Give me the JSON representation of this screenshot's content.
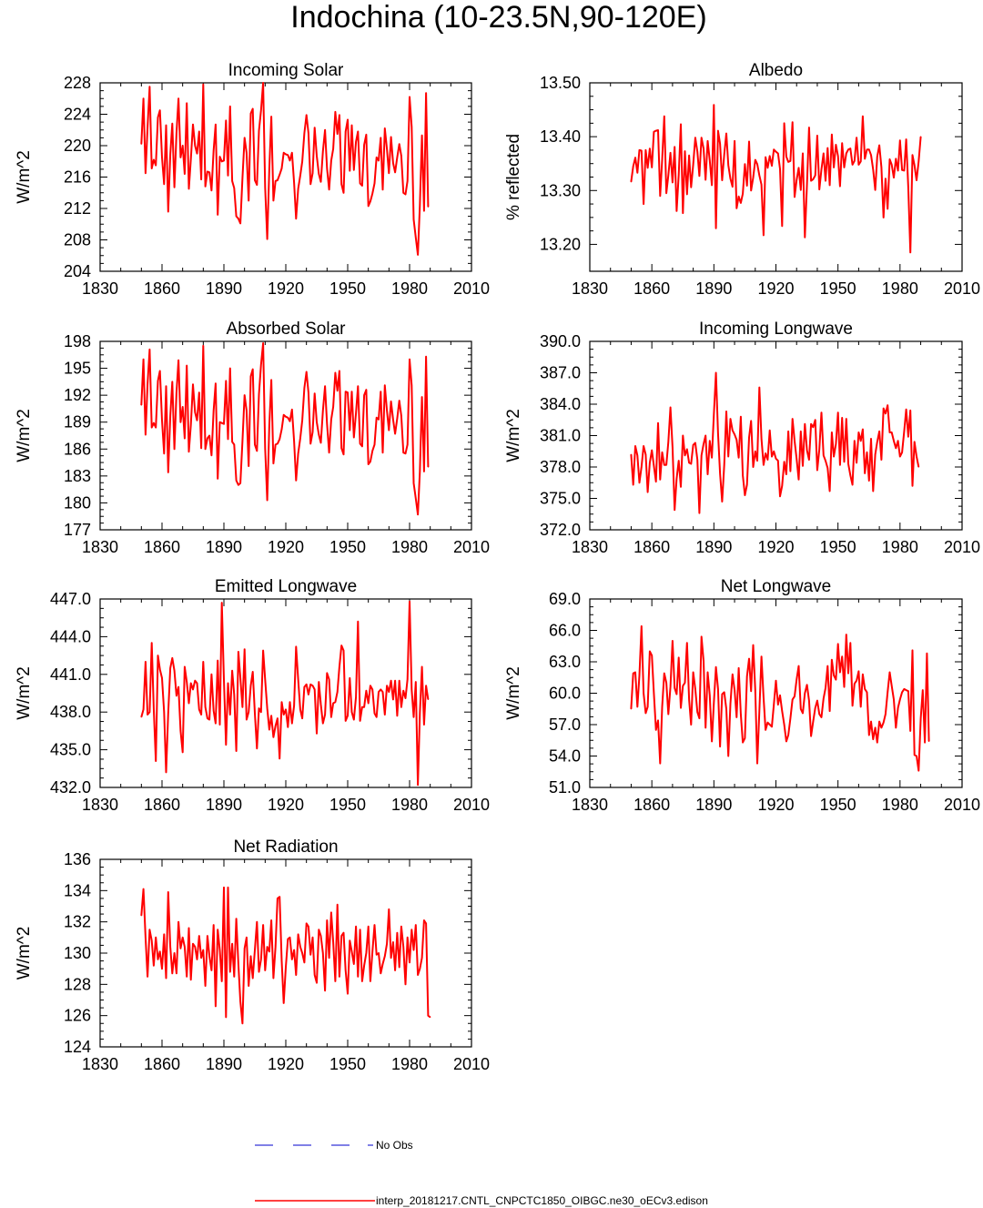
{
  "figure": {
    "title": "Indochina (10-23.5N,90-120E)",
    "series_color": "#ff0000",
    "obs_color": "#0000cc"
  },
  "legend": {
    "obs_label": "No Obs",
    "model_label": "interp_20181217.CNTL_CNPCTC1850_OIBGC.ne30_oECv3.edison"
  },
  "chart_data": [
    {
      "id": "incoming-solar",
      "type": "line",
      "title": "Incoming Solar",
      "xlabel": "",
      "ylabel": "W/m^2",
      "xlim": [
        1830,
        2010
      ],
      "ylim": [
        204,
        228
      ],
      "xticks": [
        1830,
        1860,
        1890,
        1920,
        1950,
        1980,
        2010
      ],
      "yticks": [
        204,
        208,
        212,
        216,
        220,
        224,
        228
      ],
      "ytick_labels": [
        "204",
        "208",
        "212",
        "216",
        "220",
        "224",
        "228"
      ],
      "x_start": 1850,
      "values": [
        220.2,
        226.0,
        216.5,
        222.3,
        227.5,
        217.1,
        218.2,
        217.5,
        223.6,
        224.5,
        218.5,
        215.1,
        222.6,
        211.6,
        218.9,
        222.8,
        214.7,
        221.6,
        226.0,
        218.5,
        220.0,
        216.4,
        225.4,
        214.5,
        218.3,
        222.7,
        220.0,
        219.0,
        221.8,
        215.7,
        227.8,
        214.8,
        216.7,
        216.6,
        214.3,
        219.4,
        222.7,
        211.2,
        218.6,
        218.0,
        218.1,
        223.2,
        216.2,
        225.0,
        215.5,
        214.6,
        211.0,
        210.7,
        210.1,
        215.9,
        221.0,
        219.1,
        213.0,
        224.1,
        224.7,
        215.6,
        215.0,
        221.9,
        224.5,
        228.0,
        214.7,
        208.1,
        217.1,
        223.7,
        213.0,
        215.5,
        215.6,
        216.3,
        217.1,
        219.1,
        218.9,
        218.8,
        218.1,
        219.1,
        215.3,
        210.7,
        214.5,
        216.2,
        218.0,
        221.6,
        223.9,
        221.6,
        215.1,
        216.5,
        222.3,
        218.7,
        216.4,
        215.4,
        219.3,
        222.0,
        217.1,
        214.4,
        218.1,
        219.6,
        224.3,
        221.5,
        223.9,
        215.1,
        214.0,
        221.8,
        223.3,
        216.8,
        222.6,
        216.9,
        220.5,
        221.8,
        215.2,
        214.9,
        220.1,
        221.4,
        212.3,
        212.9,
        213.9,
        215.2,
        218.5,
        218.1,
        221.0,
        214.4,
        222.2,
        219.6,
        216.5,
        221.1,
        217.8,
        216.6,
        218.5,
        220.2,
        218.7,
        214.0,
        213.8,
        215.5,
        226.2,
        222.4,
        210.6,
        208.3,
        206.1,
        212.4,
        221.3,
        211.7,
        226.7,
        212.2
      ]
    },
    {
      "id": "albedo",
      "type": "line",
      "title": "Albedo",
      "xlabel": "",
      "ylabel": "% reflected",
      "xlim": [
        1830,
        2010
      ],
      "ylim": [
        13.15,
        13.5
      ],
      "xticks": [
        1830,
        1860,
        1890,
        1920,
        1950,
        1980,
        2010
      ],
      "yticks": [
        13.2,
        13.3,
        13.4,
        13.5
      ],
      "ytick_labels": [
        "13.20",
        "13.30",
        "13.40",
        "13.50"
      ],
      "x_start": 1850,
      "values": [
        13.316,
        13.345,
        13.361,
        13.333,
        13.375,
        13.374,
        13.275,
        13.375,
        13.342,
        13.378,
        13.343,
        13.409,
        13.411,
        13.412,
        13.29,
        13.357,
        13.438,
        13.295,
        13.328,
        13.37,
        13.315,
        13.381,
        13.262,
        13.329,
        13.423,
        13.258,
        13.373,
        13.293,
        13.365,
        13.306,
        13.348,
        13.398,
        13.372,
        13.327,
        13.398,
        13.378,
        13.32,
        13.392,
        13.356,
        13.31,
        13.459,
        13.23,
        13.411,
        13.387,
        13.319,
        13.367,
        13.406,
        13.347,
        13.322,
        13.307,
        13.392,
        13.267,
        13.289,
        13.277,
        13.294,
        13.349,
        13.309,
        13.391,
        13.3,
        13.324,
        13.357,
        13.349,
        13.328,
        13.311,
        13.217,
        13.362,
        13.342,
        13.364,
        13.346,
        13.376,
        13.372,
        13.369,
        13.34,
        13.234,
        13.425,
        13.363,
        13.353,
        13.355,
        13.427,
        13.288,
        13.319,
        13.342,
        13.301,
        13.369,
        13.213,
        13.311,
        13.417,
        13.318,
        13.321,
        13.328,
        13.402,
        13.302,
        13.339,
        13.369,
        13.318,
        13.379,
        13.31,
        13.404,
        13.343,
        13.385,
        13.364,
        13.308,
        13.388,
        13.343,
        13.369,
        13.376,
        13.378,
        13.348,
        13.355,
        13.398,
        13.348,
        13.354,
        13.438,
        13.359,
        13.376,
        13.376,
        13.366,
        13.339,
        13.301,
        13.363,
        13.384,
        13.343,
        13.25,
        13.322,
        13.266,
        13.358,
        13.348,
        13.324,
        13.359,
        13.337,
        13.393,
        13.338,
        13.337,
        13.395,
        13.306,
        13.185,
        13.366,
        13.347,
        13.319,
        13.354,
        13.4
      ]
    },
    {
      "id": "absorbed-solar",
      "type": "line",
      "title": "Absorbed Solar",
      "xlabel": "",
      "ylabel": "W/m^2",
      "xlim": [
        1830,
        2010
      ],
      "ylim": [
        177,
        198
      ],
      "xticks": [
        1830,
        1860,
        1890,
        1920,
        1950,
        1980,
        2010
      ],
      "yticks": [
        177,
        180,
        183,
        186,
        189,
        192,
        195,
        198
      ],
      "ytick_labels": [
        "177",
        "180",
        "183",
        "186",
        "189",
        "192",
        "195",
        "198"
      ],
      "x_start": 1850,
      "values": [
        190.9,
        196.0,
        187.6,
        193.2,
        197.1,
        188.4,
        188.9,
        188.4,
        193.6,
        194.7,
        189.2,
        185.5,
        193.0,
        183.4,
        189.7,
        193.5,
        186.0,
        192.3,
        195.9,
        189.0,
        190.7,
        187.2,
        195.3,
        185.7,
        188.7,
        193.2,
        190.1,
        189.2,
        192.3,
        186.1,
        197.5,
        186.0,
        187.2,
        187.5,
        185.3,
        190.3,
        193.3,
        182.7,
        189.0,
        188.9,
        188.8,
        193.6,
        187.1,
        195.0,
        186.8,
        186.5,
        182.5,
        182.0,
        182.2,
        186.9,
        192.0,
        190.3,
        184.1,
        194.1,
        194.9,
        186.5,
        185.8,
        192.1,
        195.4,
        197.8,
        186.1,
        180.3,
        188.7,
        193.7,
        184.4,
        186.5,
        186.6,
        187.1,
        188.2,
        189.8,
        189.6,
        189.5,
        189.1,
        190.4,
        186.9,
        182.5,
        185.5,
        187.2,
        189.2,
        192.8,
        194.6,
        192.3,
        186.6,
        187.9,
        192.2,
        189.0,
        187.6,
        186.7,
        190.3,
        193.0,
        188.8,
        185.6,
        189.3,
        190.7,
        194.5,
        192.5,
        194.7,
        186.1,
        185.4,
        192.4,
        192.3,
        188.1,
        192.4,
        187.3,
        190.0,
        193.0,
        186.6,
        186.3,
        192.0,
        192.6,
        184.3,
        184.6,
        185.8,
        186.5,
        189.5,
        189.3,
        192.4,
        185.6,
        193.1,
        190.3,
        188.1,
        191.3,
        189.3,
        187.7,
        189.4,
        191.4,
        189.7,
        185.6,
        185.5,
        186.5,
        196.0,
        193.1,
        182.2,
        180.5,
        178.7,
        183.5,
        191.8,
        183.5,
        196.3,
        184.0
      ]
    },
    {
      "id": "incoming-longwave",
      "type": "line",
      "title": "Incoming Longwave",
      "xlabel": "",
      "ylabel": "W/m^2",
      "xlim": [
        1830,
        2010
      ],
      "ylim": [
        372,
        390
      ],
      "xticks": [
        1830,
        1860,
        1890,
        1920,
        1950,
        1980,
        2010
      ],
      "yticks": [
        372,
        375,
        378,
        381,
        384,
        387,
        390
      ],
      "ytick_labels": [
        "372.0",
        "375.0",
        "378.0",
        "381.0",
        "384.0",
        "387.0",
        "390.0"
      ],
      "x_start": 1850,
      "values": [
        379.2,
        376.3,
        380.0,
        379.1,
        376.5,
        378.0,
        380.0,
        379.2,
        375.6,
        378.4,
        379.6,
        378.1,
        376.6,
        382.2,
        376.8,
        379.4,
        378.2,
        378.2,
        380.4,
        383.7,
        379.9,
        373.9,
        376.9,
        378.6,
        376.1,
        381.0,
        379.1,
        379.7,
        378.4,
        378.3,
        380.1,
        380.3,
        378.7,
        373.6,
        379.1,
        380.2,
        381.0,
        377.3,
        380.5,
        378.9,
        383.0,
        387.0,
        381.2,
        377.4,
        374.7,
        378.2,
        383.3,
        379.0,
        382.6,
        381.5,
        381.1,
        380.6,
        378.9,
        382.8,
        377.2,
        375.3,
        376.3,
        380.8,
        382.4,
        378.0,
        379.5,
        378.6,
        385.6,
        380.7,
        378.2,
        379.3,
        378.7,
        381.5,
        379.0,
        379.5,
        378.8,
        378.6,
        375.2,
        376.2,
        378.5,
        377.3,
        381.4,
        377.6,
        382.6,
        380.5,
        378.8,
        376.8,
        381.4,
        378.1,
        382.1,
        379.6,
        378.7,
        382.1,
        381.8,
        382.5,
        377.7,
        379.7,
        383.2,
        379.1,
        378.6,
        377.9,
        375.7,
        381.3,
        379.0,
        380.2,
        383.2,
        378.2,
        382.7,
        378.5,
        382.6,
        378.3,
        377.2,
        376.3,
        380.5,
        378.4,
        381.3,
        380.5,
        381.6,
        377.4,
        379.4,
        376.7,
        380.7,
        375.7,
        379.2,
        380.4,
        381.4,
        378.7,
        383.6,
        383.1,
        383.9,
        381.3,
        381.3,
        380.5,
        379.8,
        380.5,
        379.0,
        379.4,
        381.4,
        383.5,
        380.9,
        383.4,
        376.2,
        380.4,
        379.0,
        378.0
      ]
    },
    {
      "id": "emitted-longwave",
      "type": "line",
      "title": "Emitted Longwave",
      "xlabel": "",
      "ylabel": "W/m^2",
      "xlim": [
        1830,
        2010
      ],
      "ylim": [
        432,
        447
      ],
      "xticks": [
        1830,
        1860,
        1890,
        1920,
        1950,
        1980,
        2010
      ],
      "yticks": [
        432,
        435,
        438,
        441,
        444,
        447
      ],
      "ytick_labels": [
        "432.0",
        "435.0",
        "438.0",
        "441.0",
        "444.0",
        "447.0"
      ],
      "x_start": 1850,
      "values": [
        437.6,
        438.2,
        442.0,
        437.8,
        438.0,
        443.5,
        438.3,
        434.1,
        442.5,
        441.4,
        440.7,
        438.0,
        433.2,
        437.9,
        441.5,
        442.3,
        441.3,
        439.3,
        440.0,
        436.5,
        434.8,
        441.6,
        440.4,
        438.7,
        440.3,
        439.8,
        440.5,
        440.3,
        438.2,
        437.8,
        442.0,
        438.4,
        437.5,
        437.4,
        441.0,
        438.1,
        437.1,
        442.1,
        437.0,
        446.7,
        440.6,
        435.4,
        440.3,
        437.8,
        441.3,
        439.4,
        434.9,
        442.8,
        440.7,
        438.4,
        443.0,
        437.4,
        438.0,
        440.1,
        441.2,
        437.9,
        435.1,
        438.3,
        438.0,
        442.9,
        440.6,
        438.3,
        436.6,
        437.7,
        436.0,
        436.9,
        437.5,
        434.3,
        438.8,
        437.8,
        438.2,
        436.8,
        438.8,
        437.1,
        438.5,
        443.2,
        440.6,
        438.2,
        437.5,
        440.0,
        440.2,
        439.4,
        440.2,
        440.1,
        439.8,
        436.3,
        440.4,
        438.6,
        437.1,
        437.8,
        441.1,
        440.6,
        437.6,
        438.7,
        438.8,
        439.6,
        441.6,
        443.3,
        442.9,
        437.3,
        437.7,
        440.7,
        438.0,
        437.4,
        439.2,
        445.2,
        437.3,
        438.4,
        438.4,
        439.7,
        438.7,
        440.1,
        439.8,
        437.9,
        437.6,
        439.6,
        439.8,
        439.6,
        437.8,
        440.1,
        439.6,
        440.5,
        439.0,
        440.5,
        437.7,
        440.5,
        438.4,
        439.7,
        439.1,
        440.6,
        446.8,
        439.8,
        437.6,
        440.4,
        432.2,
        437.9,
        441.6,
        437.0,
        440.1,
        439.0
      ]
    },
    {
      "id": "net-longwave",
      "type": "line",
      "title": "Net Longwave",
      "xlabel": "",
      "ylabel": "W/m^2",
      "xlim": [
        1830,
        2010
      ],
      "ylim": [
        51,
        69
      ],
      "xticks": [
        1830,
        1860,
        1890,
        1920,
        1950,
        1980,
        2010
      ],
      "yticks": [
        51,
        54,
        57,
        60,
        63,
        66,
        69
      ],
      "ytick_labels": [
        "51.0",
        "54.0",
        "57.0",
        "60.0",
        "63.0",
        "66.0",
        "69.0"
      ],
      "x_start": 1850,
      "values": [
        58.5,
        61.9,
        62.0,
        58.7,
        61.7,
        66.4,
        60.0,
        58.1,
        58.7,
        64.0,
        63.6,
        60.0,
        56.5,
        57.4,
        53.3,
        58.7,
        61.9,
        61.0,
        58.0,
        60.6,
        65.0,
        60.5,
        59.9,
        63.4,
        58.6,
        60.7,
        61.0,
        64.8,
        59.4,
        57.0,
        62.0,
        60.4,
        58.2,
        57.6,
        65.4,
        63.1,
        56.7,
        62.0,
        59.8,
        55.4,
        59.1,
        62.5,
        60.4,
        54.9,
        59.9,
        60.1,
        58.5,
        54.0,
        59.0,
        61.8,
        60.3,
        57.7,
        62.4,
        58.0,
        55.3,
        55.7,
        61.6,
        63.3,
        60.2,
        64.6,
        60.3,
        53.3,
        58.3,
        63.5,
        59.6,
        56.5,
        57.2,
        57.0,
        56.8,
        58.9,
        61.2,
        58.9,
        59.8,
        58.3,
        57.0,
        55.4,
        56.0,
        57.6,
        59.4,
        59.7,
        61.3,
        62.6,
        58.5,
        58.1,
        60.0,
        60.8,
        59.3,
        55.9,
        57.3,
        58.6,
        59.3,
        58.0,
        57.7,
        59.5,
        60.5,
        62.6,
        58.3,
        63.2,
        61.7,
        61.3,
        64.7,
        62.0,
        63.5,
        60.6,
        65.6,
        61.9,
        64.8,
        58.8,
        60.9,
        61.2,
        62.1,
        58.7,
        61.8,
        60.4,
        60.1,
        56.0,
        57.3,
        55.6,
        56.7,
        55.3,
        57.3,
        56.7,
        57.2,
        58.0,
        60.1,
        62.0,
        60.7,
        59.4,
        56.7,
        58.6,
        59.4,
        60.1,
        60.4,
        60.3,
        60.2,
        56.4,
        64.1,
        54.1,
        54.0,
        52.6,
        57.6,
        60.3,
        55.3,
        63.8,
        55.4
      ]
    },
    {
      "id": "net-radiation",
      "type": "line",
      "title": "Net Radiation",
      "xlabel": "",
      "ylabel": "W/m^2",
      "xlim": [
        1830,
        2010
      ],
      "ylim": [
        124,
        136
      ],
      "xticks": [
        1830,
        1860,
        1890,
        1920,
        1950,
        1980,
        2010
      ],
      "yticks": [
        124,
        126,
        128,
        130,
        132,
        134,
        136
      ],
      "ytick_labels": [
        "124",
        "126",
        "128",
        "130",
        "132",
        "134",
        "136"
      ],
      "x_start": 1850,
      "values": [
        132.4,
        134.1,
        131.0,
        128.5,
        131.5,
        130.8,
        129.2,
        131.0,
        129.6,
        130.1,
        129.0,
        131.2,
        128.4,
        133.9,
        130.4,
        128.7,
        130.0,
        128.7,
        132.0,
        130.3,
        131.0,
        130.4,
        128.5,
        131.6,
        128.3,
        130.6,
        130.4,
        129.6,
        131.1,
        129.7,
        130.2,
        127.9,
        131.1,
        129.8,
        128.9,
        131.8,
        126.6,
        131.5,
        130.2,
        128.2,
        134.2,
        125.9,
        134.2,
        128.8,
        130.6,
        128.5,
        132.2,
        129.3,
        126.9,
        125.5,
        130.3,
        131.0,
        127.9,
        129.8,
        128.4,
        130.2,
        132.0,
        128.8,
        129.6,
        131.8,
        128.9,
        130.4,
        130.1,
        132.1,
        128.4,
        130.4,
        133.5,
        133.6,
        129.5,
        126.8,
        129.1,
        130.9,
        131.0,
        129.6,
        130.2,
        128.6,
        131.2,
        130.4,
        130.0,
        129.4,
        131.9,
        131.7,
        129.9,
        131.0,
        128.6,
        128.1,
        131.5,
        131.1,
        130.0,
        127.6,
        132.1,
        129.7,
        132.6,
        130.7,
        128.2,
        133.1,
        128.5,
        131.1,
        131.3,
        128.9,
        127.4,
        130.8,
        130.1,
        129.3,
        131.7,
        128.5,
        131.5,
        128.2,
        129.2,
        130.0,
        131.7,
        128.2,
        130.1,
        131.8,
        129.9,
        130.0,
        128.7,
        129.3,
        129.8,
        130.6,
        132.8,
        129.7,
        130.7,
        128.9,
        131.3,
        129.1,
        131.7,
        130.4,
        128.0,
        131.0,
        129.4,
        131.5,
        130.2,
        131.8,
        128.6,
        129.0,
        129.7,
        132.1,
        131.9,
        126.0,
        125.9
      ]
    }
  ]
}
